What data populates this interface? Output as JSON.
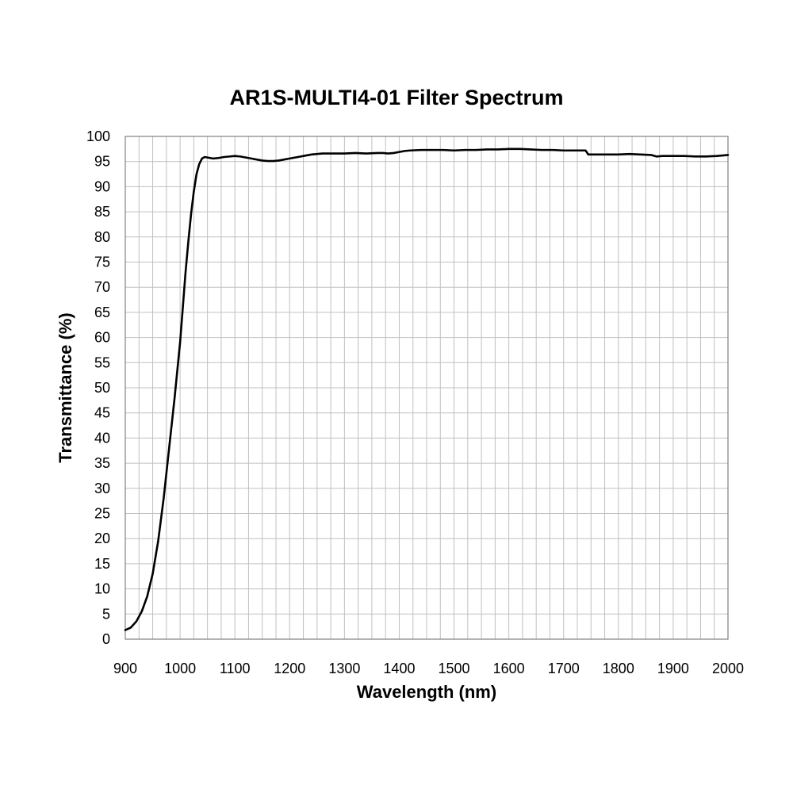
{
  "chart_data": {
    "type": "line",
    "title": "AR1S-MULTI4-01 Filter Spectrum",
    "xlabel": "Wavelength (nm)",
    "ylabel": "Transmittance (%)",
    "xlim": [
      900,
      2000
    ],
    "ylim": [
      0,
      100
    ],
    "xticks": [
      "900",
      "1000",
      "1100",
      "1200",
      "1300",
      "1400",
      "1500",
      "1600",
      "1700",
      "1800",
      "1900",
      "2000"
    ],
    "yticks": [
      "0",
      "5",
      "10",
      "15",
      "20",
      "25",
      "30",
      "35",
      "40",
      "45",
      "50",
      "55",
      "60",
      "65",
      "70",
      "75",
      "80",
      "85",
      "90",
      "95",
      "100"
    ],
    "grid": true,
    "series": [
      {
        "color": "#000000",
        "x": [
          900,
          910,
          920,
          930,
          940,
          950,
          960,
          970,
          980,
          990,
          1000,
          1005,
          1010,
          1015,
          1020,
          1025,
          1030,
          1035,
          1040,
          1045,
          1050,
          1060,
          1070,
          1080,
          1090,
          1100,
          1110,
          1120,
          1130,
          1140,
          1150,
          1160,
          1170,
          1180,
          1190,
          1200,
          1210,
          1220,
          1230,
          1240,
          1250,
          1260,
          1270,
          1280,
          1300,
          1320,
          1340,
          1360,
          1370,
          1380,
          1390,
          1400,
          1410,
          1420,
          1440,
          1460,
          1480,
          1500,
          1520,
          1540,
          1560,
          1580,
          1600,
          1620,
          1640,
          1660,
          1680,
          1700,
          1720,
          1740,
          1742,
          1745,
          1760,
          1780,
          1800,
          1820,
          1840,
          1860,
          1870,
          1880,
          1900,
          1920,
          1940,
          1960,
          1980,
          2000
        ],
        "y": [
          1.8,
          2.3,
          3.5,
          5.5,
          8.5,
          13,
          19.5,
          28,
          38,
          48,
          59,
          66,
          73,
          79,
          84.5,
          89,
          92.5,
          94.5,
          95.6,
          95.9,
          95.8,
          95.6,
          95.7,
          95.9,
          96.0,
          96.1,
          96.0,
          95.8,
          95.6,
          95.4,
          95.2,
          95.1,
          95.1,
          95.2,
          95.4,
          95.6,
          95.8,
          96.0,
          96.2,
          96.4,
          96.5,
          96.6,
          96.6,
          96.6,
          96.6,
          96.7,
          96.6,
          96.7,
          96.7,
          96.6,
          96.7,
          96.9,
          97.1,
          97.2,
          97.3,
          97.3,
          97.3,
          97.2,
          97.3,
          97.3,
          97.4,
          97.4,
          97.5,
          97.5,
          97.4,
          97.3,
          97.3,
          97.2,
          97.2,
          97.2,
          96.9,
          96.4,
          96.4,
          96.4,
          96.4,
          96.5,
          96.4,
          96.3,
          96.0,
          96.1,
          96.1,
          96.1,
          96.0,
          96.0,
          96.1,
          96.3
        ]
      }
    ]
  }
}
